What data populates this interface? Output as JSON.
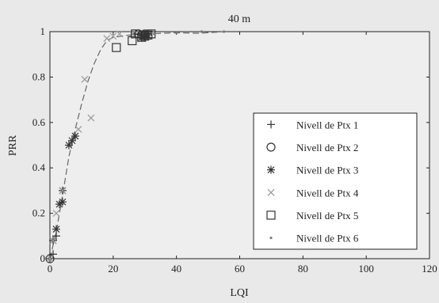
{
  "chart_data": {
    "type": "scatter",
    "title": "40 m",
    "xlabel": "LQI",
    "ylabel": "PRR",
    "xlim": [
      0,
      120
    ],
    "ylim": [
      0,
      1
    ],
    "x_ticks": [
      "0",
      "20",
      "40",
      "60",
      "80",
      "100",
      "120"
    ],
    "y_ticks": [
      "0",
      "0.2",
      "0.4",
      "0.6",
      "0.8",
      "1"
    ],
    "legend_position": "bottom-right",
    "series": [
      {
        "name": "Nivell de Ptx 1",
        "marker": "plus",
        "points": [
          [
            0,
            0
          ],
          [
            1,
            0.02
          ],
          [
            2,
            0.1
          ],
          [
            27,
            0.99
          ],
          [
            29,
            0.985
          ],
          [
            30,
            0.98
          ],
          [
            31,
            0.99
          ]
        ]
      },
      {
        "name": "Nivell de Ptx 2",
        "marker": "circle",
        "points": [
          [
            0,
            0
          ],
          [
            28,
            0.99
          ],
          [
            29,
            0.985
          ],
          [
            30,
            0.99
          ]
        ]
      },
      {
        "name": "Nivell de Ptx 3",
        "marker": "asterisk",
        "points": [
          [
            1,
            0.08
          ],
          [
            2,
            0.13
          ],
          [
            3,
            0.24
          ],
          [
            4,
            0.25
          ],
          [
            4,
            0.3
          ],
          [
            6,
            0.5
          ],
          [
            7,
            0.52
          ],
          [
            8,
            0.54
          ],
          [
            29,
            0.975
          ],
          [
            30,
            0.98
          ],
          [
            31,
            0.985
          ]
        ]
      },
      {
        "name": "Nivell de Ptx 4",
        "marker": "x",
        "points": [
          [
            0,
            0
          ],
          [
            1,
            0.08
          ],
          [
            2,
            0.2
          ],
          [
            4,
            0.3
          ],
          [
            9,
            0.57
          ],
          [
            11,
            0.79
          ],
          [
            13,
            0.62
          ],
          [
            18,
            0.97
          ],
          [
            20,
            0.98
          ],
          [
            22,
            0.99
          ],
          [
            26,
            0.99
          ]
        ]
      },
      {
        "name": "Nivell de Ptx 5",
        "marker": "square",
        "points": [
          [
            21,
            0.93
          ],
          [
            26,
            0.96
          ],
          [
            27,
            0.99
          ],
          [
            29,
            0.975
          ],
          [
            30,
            0.98
          ],
          [
            31,
            0.985
          ],
          [
            32,
            0.99
          ]
        ]
      },
      {
        "name": "Nivell de Ptx 6",
        "marker": "dot",
        "points": [
          [
            33,
            0.99
          ],
          [
            40,
            0.995
          ],
          [
            48,
            1.0
          ],
          [
            55,
            1.0
          ]
        ]
      }
    ],
    "fit_line": {
      "style": "dashed",
      "points": [
        [
          0,
          0
        ],
        [
          2,
          0.12
        ],
        [
          4,
          0.28
        ],
        [
          6,
          0.45
        ],
        [
          8,
          0.57
        ],
        [
          10,
          0.68
        ],
        [
          12,
          0.78
        ],
        [
          14,
          0.86
        ],
        [
          16,
          0.92
        ],
        [
          18,
          0.96
        ],
        [
          20,
          0.975
        ],
        [
          25,
          0.985
        ],
        [
          30,
          0.99
        ],
        [
          40,
          0.995
        ],
        [
          47,
          0.993
        ],
        [
          55,
          1.0
        ]
      ]
    },
    "colors": {
      "background": "#e9e9e9",
      "plot": "#eeeeee",
      "axis": "#222222",
      "fit": "#666666"
    }
  }
}
